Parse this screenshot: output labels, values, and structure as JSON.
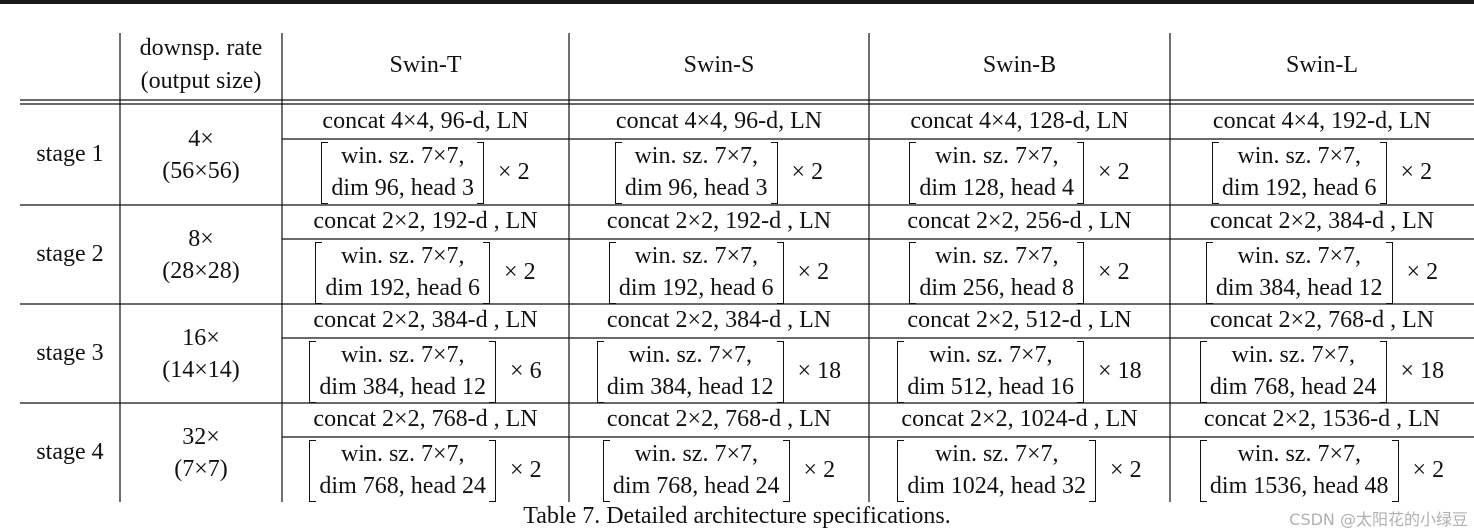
{
  "header": {
    "downsp_line1": "downsp. rate",
    "downsp_line2": "(output size)",
    "models": [
      "Swin-T",
      "Swin-S",
      "Swin-B",
      "Swin-L"
    ]
  },
  "stages": [
    {
      "label": "stage 1",
      "rate": "4×",
      "size": "(56×56)",
      "cells": [
        {
          "concat": "concat 4×4, 96-d, LN",
          "win": "win. sz. 7×7,",
          "dim": "dim 96, head 3",
          "rep": "× 2"
        },
        {
          "concat": "concat 4×4, 96-d, LN",
          "win": "win. sz. 7×7,",
          "dim": "dim 96, head 3",
          "rep": "× 2"
        },
        {
          "concat": "concat 4×4, 128-d, LN",
          "win": "win. sz. 7×7,",
          "dim": "dim 128, head 4",
          "rep": "× 2"
        },
        {
          "concat": "concat 4×4, 192-d, LN",
          "win": "win. sz. 7×7,",
          "dim": "dim 192, head 6",
          "rep": "× 2"
        }
      ]
    },
    {
      "label": "stage 2",
      "rate": "8×",
      "size": "(28×28)",
      "cells": [
        {
          "concat": "concat 2×2, 192-d , LN",
          "win": "win. sz. 7×7,",
          "dim": "dim 192, head 6",
          "rep": "× 2"
        },
        {
          "concat": "concat 2×2, 192-d , LN",
          "win": "win. sz. 7×7,",
          "dim": "dim 192, head 6",
          "rep": "× 2"
        },
        {
          "concat": "concat 2×2, 256-d , LN",
          "win": "win. sz. 7×7,",
          "dim": "dim 256, head 8",
          "rep": "× 2"
        },
        {
          "concat": "concat 2×2, 384-d , LN",
          "win": "win. sz. 7×7,",
          "dim": "dim 384, head 12",
          "rep": "× 2"
        }
      ]
    },
    {
      "label": "stage 3",
      "rate": "16×",
      "size": "(14×14)",
      "cells": [
        {
          "concat": "concat 2×2, 384-d , LN",
          "win": "win. sz. 7×7,",
          "dim": "dim 384, head 12",
          "rep": "× 6"
        },
        {
          "concat": "concat 2×2, 384-d , LN",
          "win": "win. sz. 7×7,",
          "dim": "dim 384, head 12",
          "rep": "× 18"
        },
        {
          "concat": "concat 2×2, 512-d , LN",
          "win": "win. sz. 7×7,",
          "dim": "dim 512, head 16",
          "rep": "× 18"
        },
        {
          "concat": "concat 2×2, 768-d , LN",
          "win": "win. sz. 7×7,",
          "dim": "dim 768, head 24",
          "rep": "× 18"
        }
      ]
    },
    {
      "label": "stage 4",
      "rate": "32×",
      "size": "(7×7)",
      "cells": [
        {
          "concat": "concat 2×2, 768-d , LN",
          "win": "win. sz. 7×7,",
          "dim": "dim 768, head 24",
          "rep": "× 2"
        },
        {
          "concat": "concat 2×2, 768-d , LN",
          "win": "win. sz. 7×7,",
          "dim": "dim 768, head 24",
          "rep": "× 2"
        },
        {
          "concat": "concat 2×2, 1024-d , LN",
          "win": "win. sz. 7×7,",
          "dim": "dim 1024, head 32",
          "rep": "× 2"
        },
        {
          "concat": "concat 2×2, 1536-d , LN",
          "win": "win. sz. 7×7,",
          "dim": "dim 1536, head 48",
          "rep": "× 2"
        }
      ]
    }
  ],
  "caption": "Table 7. Detailed architecture specifications.",
  "watermark": "CSDN @太阳花的小绿豆"
}
